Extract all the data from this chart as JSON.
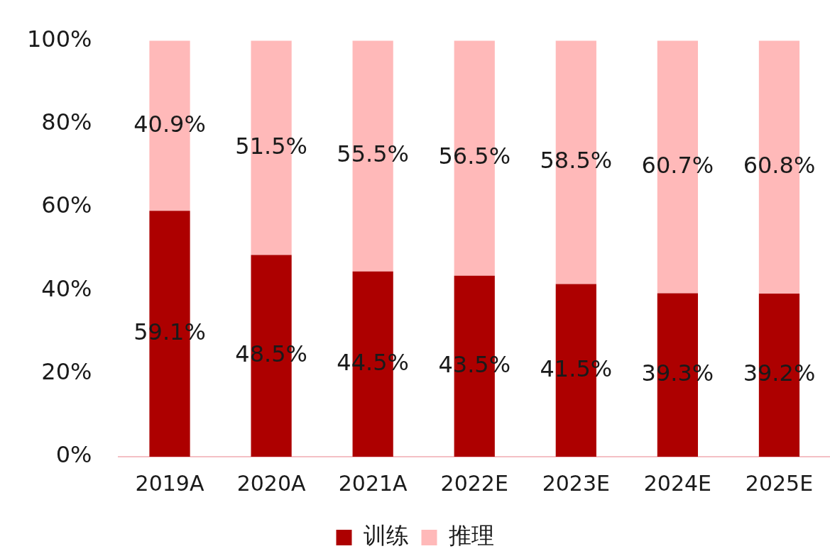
{
  "chart_data": {
    "type": "bar",
    "stacked": true,
    "categories": [
      "2019A",
      "2020A",
      "2021A",
      "2022E",
      "2023E",
      "2024E",
      "2025E"
    ],
    "series": [
      {
        "name": "训练",
        "color": "#ad0000",
        "values": [
          59.1,
          48.5,
          44.5,
          43.5,
          41.5,
          39.3,
          39.2
        ],
        "value_labels": [
          "59.1%",
          "48.5%",
          "44.5%",
          "43.5%",
          "41.5%",
          "39.3%",
          "39.2%"
        ]
      },
      {
        "name": "推理",
        "color": "#ffb9b9",
        "values": [
          40.9,
          51.5,
          55.5,
          56.5,
          58.5,
          60.7,
          60.8
        ],
        "value_labels": [
          "40.9%",
          "51.5%",
          "55.5%",
          "56.5%",
          "58.5%",
          "60.7%",
          "60.8%"
        ]
      }
    ],
    "ylim": [
      0,
      100
    ],
    "yticks": [
      {
        "value": 0,
        "label": "0%"
      },
      {
        "value": 20,
        "label": "20%"
      },
      {
        "value": 40,
        "label": "40%"
      },
      {
        "value": 60,
        "label": "60%"
      },
      {
        "value": 80,
        "label": "80%"
      },
      {
        "value": 100,
        "label": "100%"
      }
    ],
    "grid": false,
    "legend": "bottom"
  }
}
